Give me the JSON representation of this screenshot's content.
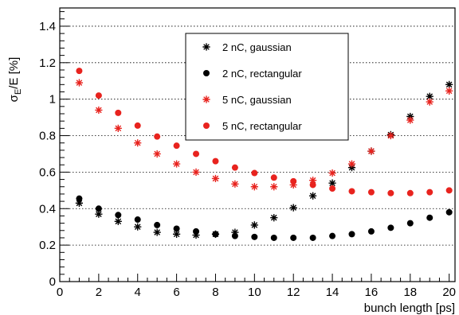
{
  "chart_data": {
    "type": "scatter",
    "title": "",
    "xlabel": "bunch length [ps]",
    "ylabel_main": "σ",
    "ylabel_sub": "E",
    "ylabel_rest": "/E [%]",
    "xlim": [
      0,
      20.3
    ],
    "ylim": [
      0,
      1.5
    ],
    "x_ticks": [
      0,
      2,
      4,
      6,
      8,
      10,
      12,
      14,
      16,
      18,
      20
    ],
    "y_ticks": [
      0,
      0.2,
      0.4,
      0.6,
      0.8,
      1,
      1.2,
      1.4
    ],
    "y_tick_labels": [
      "0",
      "0.2",
      "0.4",
      "0.6",
      "0.8",
      "1",
      "1.2",
      "1.4"
    ],
    "grid": "horizontal-dotted",
    "legend_position": "top-center",
    "series": [
      {
        "name": "2 nC, gaussian",
        "marker": "star",
        "color": "#000000",
        "x": [
          1,
          2,
          3,
          4,
          5,
          6,
          7,
          8,
          9,
          10,
          11,
          12,
          13,
          14,
          15,
          16,
          17,
          18,
          19,
          20
        ],
        "y": [
          0.43,
          0.37,
          0.33,
          0.3,
          0.27,
          0.26,
          0.255,
          0.26,
          0.27,
          0.31,
          0.35,
          0.405,
          0.47,
          0.54,
          0.625,
          0.715,
          0.805,
          0.905,
          1.015,
          1.08
        ]
      },
      {
        "name": "2 nC, rectangular",
        "marker": "circle",
        "color": "#000000",
        "x": [
          1,
          2,
          3,
          4,
          5,
          6,
          7,
          8,
          9,
          10,
          11,
          12,
          13,
          14,
          15,
          16,
          17,
          18,
          19,
          20
        ],
        "y": [
          0.455,
          0.4,
          0.365,
          0.34,
          0.31,
          0.29,
          0.275,
          0.26,
          0.25,
          0.245,
          0.24,
          0.24,
          0.24,
          0.25,
          0.26,
          0.275,
          0.295,
          0.32,
          0.35,
          0.38
        ]
      },
      {
        "name": "5 nC, gaussian",
        "marker": "star",
        "color": "#e8231e",
        "x": [
          1,
          2,
          3,
          4,
          5,
          6,
          7,
          8,
          9,
          10,
          11,
          12,
          13,
          14,
          15,
          16,
          17,
          18,
          19,
          20
        ],
        "y": [
          1.09,
          0.94,
          0.84,
          0.76,
          0.7,
          0.645,
          0.6,
          0.565,
          0.535,
          0.52,
          0.52,
          0.53,
          0.555,
          0.595,
          0.645,
          0.715,
          0.8,
          0.885,
          0.985,
          1.045
        ]
      },
      {
        "name": "5 nC, rectangular",
        "marker": "circle",
        "color": "#e8231e",
        "x": [
          1,
          2,
          3,
          4,
          5,
          6,
          7,
          8,
          9,
          10,
          11,
          12,
          13,
          14,
          15,
          16,
          17,
          18,
          19,
          20
        ],
        "y": [
          1.155,
          1.02,
          0.925,
          0.855,
          0.795,
          0.745,
          0.7,
          0.66,
          0.625,
          0.595,
          0.57,
          0.55,
          0.53,
          0.51,
          0.495,
          0.49,
          0.485,
          0.485,
          0.49,
          0.5
        ]
      }
    ]
  }
}
